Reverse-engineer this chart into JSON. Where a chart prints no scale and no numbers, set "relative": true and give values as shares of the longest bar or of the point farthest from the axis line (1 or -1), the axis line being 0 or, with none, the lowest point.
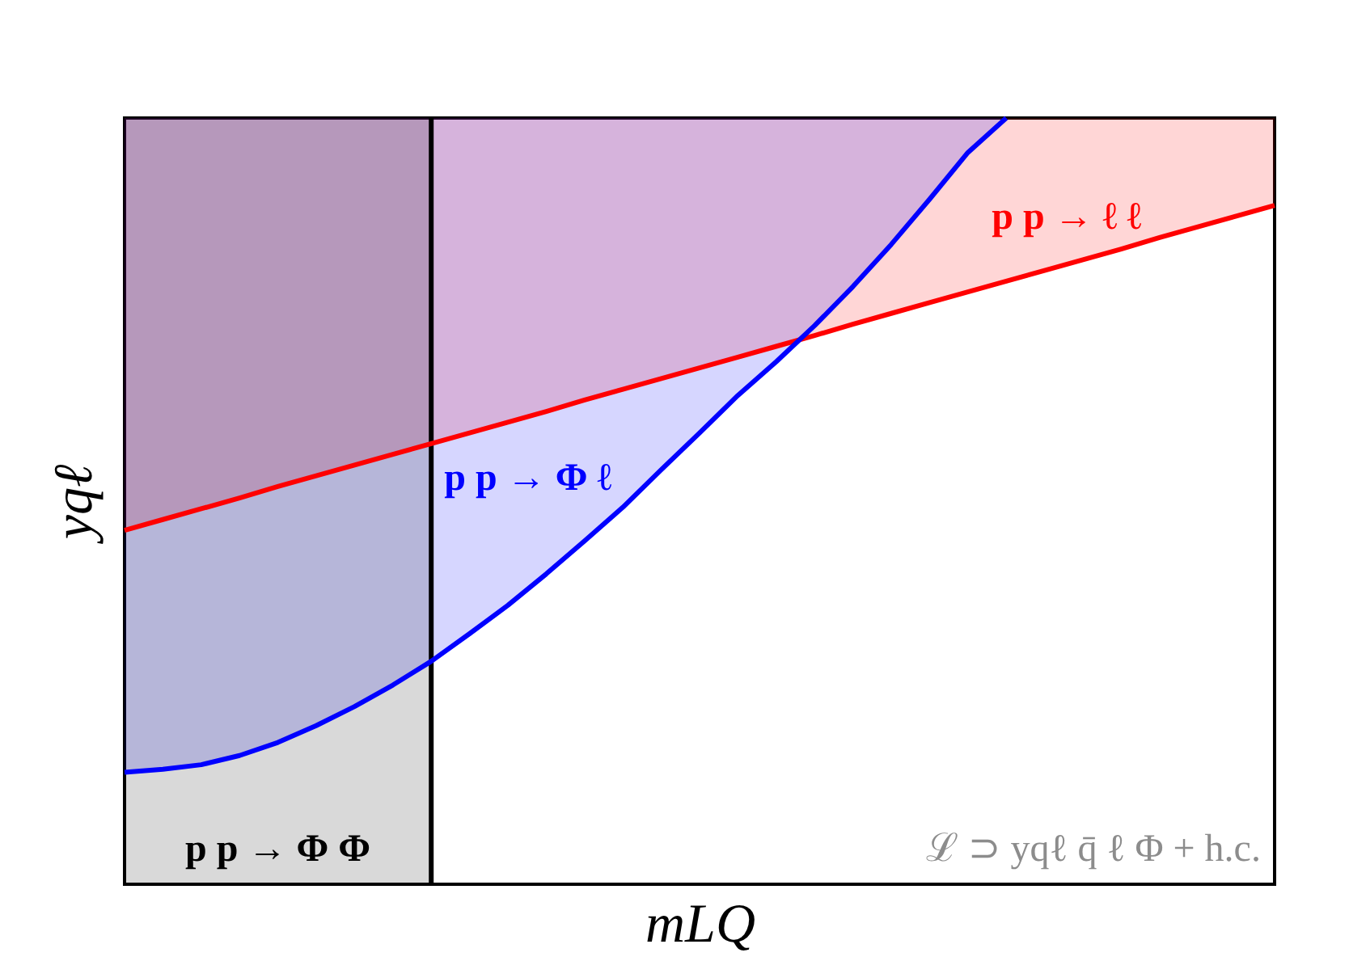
{
  "chart_data": {
    "type": "line",
    "relative": true,
    "xlabel": "mLQ",
    "ylabel": "yqℓ",
    "grid": false,
    "categories": [
      null,
      null,
      null,
      null,
      null,
      null,
      null,
      null,
      null,
      null,
      null,
      null,
      null,
      null,
      null,
      null,
      null,
      null,
      null,
      null,
      null,
      null,
      null,
      null,
      null,
      null,
      null,
      null,
      null,
      null,
      null
    ],
    "series": [
      {
        "type": "area",
        "name": "p p → Φ Φ",
        "color": "#d9d9d9",
        "values": [
          1,
          1,
          1,
          1,
          1,
          1,
          1,
          1,
          1,
          null,
          null,
          null,
          null,
          null,
          null,
          null,
          null,
          null,
          null,
          null,
          null,
          null,
          null,
          null,
          null,
          null,
          null,
          null,
          null,
          null,
          null
        ]
      },
      {
        "name": "p p → ℓ ℓ",
        "color": "#ff0000",
        "values": [
          0.462,
          0.476,
          0.49,
          0.504,
          0.519,
          0.533,
          0.547,
          0.561,
          0.575,
          0.589,
          0.603,
          0.617,
          0.632,
          0.646,
          0.66,
          0.674,
          0.688,
          0.702,
          0.716,
          0.731,
          0.745,
          0.759,
          0.773,
          0.787,
          0.801,
          0.815,
          0.829,
          0.844,
          0.858,
          0.872,
          0.886
        ],
        "lower": [
          0.462,
          0.476,
          0.49,
          0.504,
          0.519,
          0.533,
          0.547,
          0.561,
          0.575,
          0.589,
          0.603,
          0.617,
          0.632,
          0.646,
          0.66,
          0.674,
          0.688,
          0.702,
          0.716,
          0.731,
          0.745,
          0.759,
          0.773,
          0.787,
          0.801,
          0.815,
          0.829,
          0.844,
          0.858,
          0.872,
          0.886
        ],
        "upper": [
          1,
          1,
          1,
          1,
          1,
          1,
          1,
          1,
          1,
          1,
          1,
          1,
          1,
          1,
          1,
          1,
          1,
          1,
          1,
          1,
          1,
          1,
          1,
          1,
          1,
          1,
          1,
          1,
          1,
          1,
          1
        ]
      },
      {
        "name": "p p → Φ ℓ",
        "color": "#0000ff",
        "values": [
          0.146,
          0.15,
          0.156,
          0.168,
          0.185,
          0.207,
          0.232,
          0.26,
          0.291,
          0.327,
          0.364,
          0.405,
          0.448,
          0.492,
          0.541,
          0.589,
          0.638,
          0.682,
          0.729,
          0.78,
          0.835,
          0.894,
          0.955,
          1.0,
          null,
          null,
          null,
          null,
          null,
          null,
          null
        ],
        "lower": [
          0.146,
          0.15,
          0.156,
          0.168,
          0.185,
          0.207,
          0.232,
          0.26,
          0.291,
          0.327,
          0.364,
          0.405,
          0.448,
          0.492,
          0.541,
          0.589,
          0.638,
          0.682,
          0.729,
          0.78,
          0.835,
          0.894,
          0.955,
          1.0,
          null,
          null,
          null,
          null,
          null,
          null,
          null
        ],
        "upper": [
          1,
          1,
          1,
          1,
          1,
          1,
          1,
          1,
          1,
          1,
          1,
          1,
          1,
          1,
          1,
          1,
          1,
          1,
          1,
          1,
          1,
          1,
          1,
          1,
          null,
          null,
          null,
          null,
          null,
          null,
          null
        ]
      }
    ],
    "annotations": [
      "ℒ ⊃ yqℓ q̄ ℓ Φ + h.c."
    ]
  }
}
